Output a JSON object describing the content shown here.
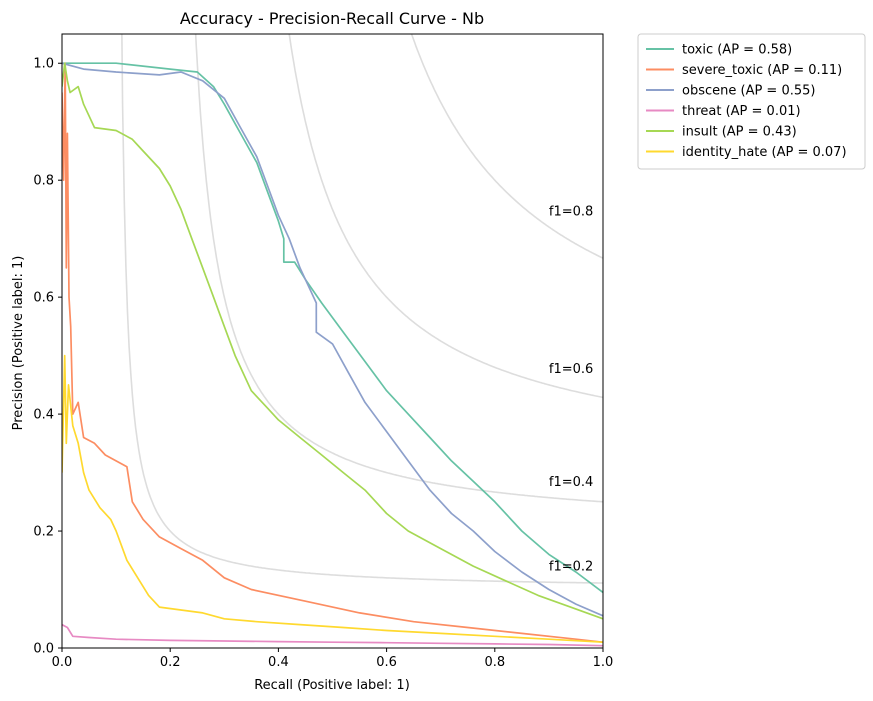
{
  "chart_data": {
    "type": "line",
    "title": "Accuracy - Precision-Recall Curve - Nb",
    "xlabel": "Recall (Positive label: 1)",
    "ylabel": "Precision (Positive label: 1)",
    "xlim": [
      0,
      1.0
    ],
    "ylim": [
      0,
      1.05
    ],
    "xticks": [
      "0.0",
      "0.2",
      "0.4",
      "0.6",
      "0.8",
      "1.0"
    ],
    "yticks": [
      "0.0",
      "0.2",
      "0.4",
      "0.6",
      "0.8",
      "1.0"
    ],
    "grid": false,
    "legend_position": "outside-upper-right",
    "iso_f1": [
      {
        "label": "f1=0.2",
        "value": 0.2
      },
      {
        "label": "f1=0.4",
        "value": 0.4
      },
      {
        "label": "f1=0.6",
        "value": 0.6
      },
      {
        "label": "f1=0.8",
        "value": 0.8
      }
    ],
    "series": [
      {
        "name": "toxic (AP = 0.58)",
        "color": "#66c2a5",
        "points": [
          [
            0,
            1.0
          ],
          [
            0.1,
            1.0
          ],
          [
            0.2,
            0.99
          ],
          [
            0.25,
            0.985
          ],
          [
            0.28,
            0.96
          ],
          [
            0.3,
            0.93
          ],
          [
            0.33,
            0.88
          ],
          [
            0.36,
            0.83
          ],
          [
            0.38,
            0.78
          ],
          [
            0.4,
            0.73
          ],
          [
            0.41,
            0.7
          ],
          [
            0.41,
            0.66
          ],
          [
            0.43,
            0.66
          ],
          [
            0.45,
            0.63
          ],
          [
            0.48,
            0.59
          ],
          [
            0.52,
            0.54
          ],
          [
            0.56,
            0.49
          ],
          [
            0.6,
            0.44
          ],
          [
            0.64,
            0.4
          ],
          [
            0.68,
            0.36
          ],
          [
            0.72,
            0.32
          ],
          [
            0.76,
            0.285
          ],
          [
            0.8,
            0.25
          ],
          [
            0.85,
            0.2
          ],
          [
            0.9,
            0.16
          ],
          [
            0.95,
            0.13
          ],
          [
            1.0,
            0.095
          ]
        ]
      },
      {
        "name": "severe_toxic (AP = 0.11)",
        "color": "#fc8d62",
        "points": [
          [
            0,
            0.95
          ],
          [
            0.003,
            0.8
          ],
          [
            0.006,
            1.0
          ],
          [
            0.008,
            0.65
          ],
          [
            0.01,
            0.88
          ],
          [
            0.013,
            0.6
          ],
          [
            0.016,
            0.55
          ],
          [
            0.02,
            0.4
          ],
          [
            0.03,
            0.42
          ],
          [
            0.04,
            0.36
          ],
          [
            0.06,
            0.35
          ],
          [
            0.08,
            0.33
          ],
          [
            0.1,
            0.32
          ],
          [
            0.12,
            0.31
          ],
          [
            0.13,
            0.25
          ],
          [
            0.15,
            0.22
          ],
          [
            0.18,
            0.19
          ],
          [
            0.22,
            0.17
          ],
          [
            0.26,
            0.15
          ],
          [
            0.3,
            0.12
          ],
          [
            0.35,
            0.1
          ],
          [
            0.45,
            0.08
          ],
          [
            0.55,
            0.06
          ],
          [
            0.65,
            0.045
          ],
          [
            0.75,
            0.035
          ],
          [
            0.85,
            0.025
          ],
          [
            0.95,
            0.015
          ],
          [
            1.0,
            0.01
          ]
        ]
      },
      {
        "name": "obscene (AP = 0.55)",
        "color": "#8da0cb",
        "points": [
          [
            0,
            1.0
          ],
          [
            0.04,
            0.99
          ],
          [
            0.1,
            0.985
          ],
          [
            0.18,
            0.98
          ],
          [
            0.22,
            0.985
          ],
          [
            0.26,
            0.97
          ],
          [
            0.3,
            0.94
          ],
          [
            0.33,
            0.89
          ],
          [
            0.36,
            0.84
          ],
          [
            0.38,
            0.79
          ],
          [
            0.4,
            0.74
          ],
          [
            0.42,
            0.7
          ],
          [
            0.44,
            0.65
          ],
          [
            0.46,
            0.61
          ],
          [
            0.47,
            0.59
          ],
          [
            0.47,
            0.54
          ],
          [
            0.5,
            0.52
          ],
          [
            0.53,
            0.47
          ],
          [
            0.56,
            0.42
          ],
          [
            0.6,
            0.37
          ],
          [
            0.64,
            0.32
          ],
          [
            0.68,
            0.27
          ],
          [
            0.72,
            0.23
          ],
          [
            0.76,
            0.2
          ],
          [
            0.8,
            0.165
          ],
          [
            0.85,
            0.13
          ],
          [
            0.9,
            0.1
          ],
          [
            0.95,
            0.075
          ],
          [
            1.0,
            0.055
          ]
        ]
      },
      {
        "name": "threat (AP = 0.01)",
        "color": "#e78ac3",
        "points": [
          [
            0,
            0.04
          ],
          [
            0.01,
            0.035
          ],
          [
            0.02,
            0.02
          ],
          [
            0.05,
            0.018
          ],
          [
            0.1,
            0.015
          ],
          [
            0.2,
            0.013
          ],
          [
            0.3,
            0.012
          ],
          [
            0.4,
            0.011
          ],
          [
            0.5,
            0.01
          ],
          [
            0.6,
            0.009
          ],
          [
            0.7,
            0.008
          ],
          [
            0.8,
            0.007
          ],
          [
            0.9,
            0.006
          ],
          [
            1.0,
            0.004
          ]
        ]
      },
      {
        "name": "insult (AP = 0.43)",
        "color": "#a6d854",
        "points": [
          [
            0,
            0.96
          ],
          [
            0.005,
            1.0
          ],
          [
            0.01,
            0.97
          ],
          [
            0.015,
            0.95
          ],
          [
            0.03,
            0.96
          ],
          [
            0.04,
            0.93
          ],
          [
            0.06,
            0.89
          ],
          [
            0.1,
            0.885
          ],
          [
            0.13,
            0.87
          ],
          [
            0.15,
            0.85
          ],
          [
            0.18,
            0.82
          ],
          [
            0.2,
            0.79
          ],
          [
            0.22,
            0.75
          ],
          [
            0.24,
            0.7
          ],
          [
            0.26,
            0.65
          ],
          [
            0.28,
            0.6
          ],
          [
            0.3,
            0.55
          ],
          [
            0.32,
            0.5
          ],
          [
            0.35,
            0.44
          ],
          [
            0.38,
            0.41
          ],
          [
            0.4,
            0.39
          ],
          [
            0.44,
            0.36
          ],
          [
            0.48,
            0.33
          ],
          [
            0.52,
            0.3
          ],
          [
            0.56,
            0.27
          ],
          [
            0.6,
            0.23
          ],
          [
            0.64,
            0.2
          ],
          [
            0.7,
            0.17
          ],
          [
            0.76,
            0.14
          ],
          [
            0.82,
            0.115
          ],
          [
            0.88,
            0.09
          ],
          [
            0.94,
            0.07
          ],
          [
            1.0,
            0.05
          ]
        ]
      },
      {
        "name": "identity_hate (AP = 0.07)",
        "color": "#ffd92f",
        "points": [
          [
            0,
            0.3
          ],
          [
            0.005,
            0.5
          ],
          [
            0.008,
            0.35
          ],
          [
            0.012,
            0.45
          ],
          [
            0.02,
            0.38
          ],
          [
            0.03,
            0.35
          ],
          [
            0.04,
            0.3
          ],
          [
            0.05,
            0.27
          ],
          [
            0.07,
            0.24
          ],
          [
            0.09,
            0.22
          ],
          [
            0.1,
            0.2
          ],
          [
            0.12,
            0.15
          ],
          [
            0.14,
            0.12
          ],
          [
            0.16,
            0.09
          ],
          [
            0.18,
            0.07
          ],
          [
            0.22,
            0.065
          ],
          [
            0.26,
            0.06
          ],
          [
            0.3,
            0.05
          ],
          [
            0.36,
            0.045
          ],
          [
            0.44,
            0.04
          ],
          [
            0.52,
            0.035
          ],
          [
            0.6,
            0.03
          ],
          [
            0.7,
            0.025
          ],
          [
            0.8,
            0.02
          ],
          [
            0.9,
            0.015
          ],
          [
            1.0,
            0.01
          ]
        ]
      }
    ]
  }
}
